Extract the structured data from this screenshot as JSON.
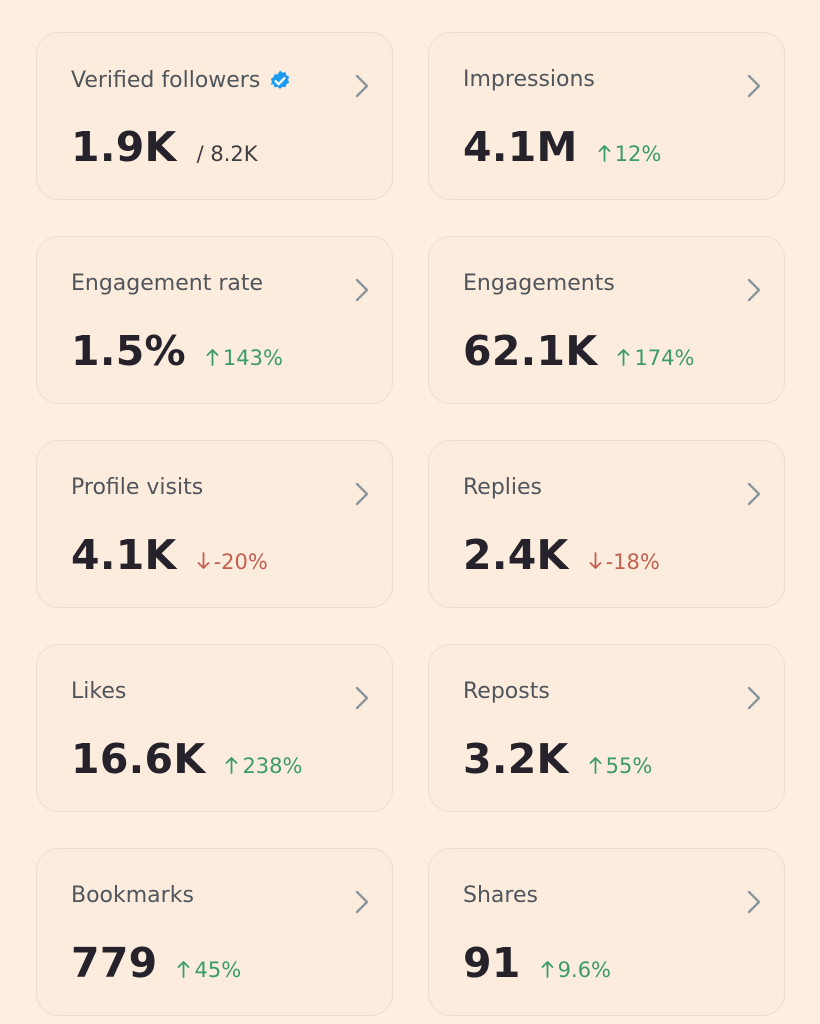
{
  "colors": {
    "background": "#fdeee0",
    "card_background": "#fcecdd",
    "up": "#3b9b6d",
    "down": "#c2604f",
    "verified_badge": "#1d9bf0"
  },
  "metrics": [
    {
      "label": "Verified followers",
      "value": "1.9K",
      "secondary": "/ 8.2K",
      "verified_icon": "verified-badge-icon"
    },
    {
      "label": "Impressions",
      "value": "4.1M",
      "change": "12%",
      "direction": "up"
    },
    {
      "label": "Engagement rate",
      "value": "1.5%",
      "change": "143%",
      "direction": "up"
    },
    {
      "label": "Engagements",
      "value": "62.1K",
      "change": "174%",
      "direction": "up"
    },
    {
      "label": "Profile visits",
      "value": "4.1K",
      "change": "-20%",
      "direction": "down"
    },
    {
      "label": "Replies",
      "value": "2.4K",
      "change": "-18%",
      "direction": "down"
    },
    {
      "label": "Likes",
      "value": "16.6K",
      "change": "238%",
      "direction": "up"
    },
    {
      "label": "Reposts",
      "value": "3.2K",
      "change": "55%",
      "direction": "up"
    },
    {
      "label": "Bookmarks",
      "value": "779",
      "change": "45%",
      "direction": "up"
    },
    {
      "label": "Shares",
      "value": "91",
      "change": "9.6%",
      "direction": "up"
    }
  ]
}
